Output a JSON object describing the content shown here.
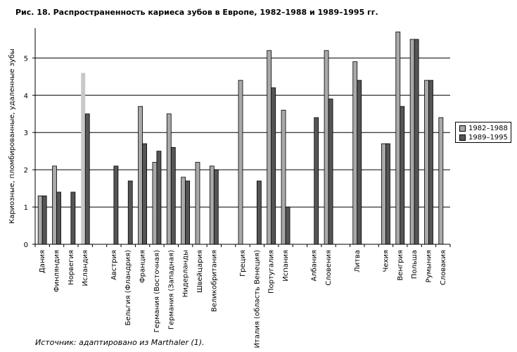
{
  "title": "Рис. 18. Распространенность кариеса зубов в Европе, 1982–1988 и 1989–1995 гг.",
  "source": "Источник: адаптировано из Marthaler (1).",
  "colors": {
    "series1": "#a9a9a9",
    "series2": "#555555",
    "highlight": "#c8c8c8",
    "grid": "#000000"
  },
  "chart_data": {
    "type": "bar",
    "ylabel": "Кариозные, пломбированные, удаленные зубы",
    "xlabel": "",
    "ylim": [
      0,
      5.8
    ],
    "yticks": [
      0,
      1,
      2,
      3,
      4,
      5
    ],
    "grid": true,
    "legend_position": "right",
    "categories": [
      "Дания",
      "Финляндия",
      "Норвегия",
      "Исландия",
      "",
      "Австрия",
      "Бельгия (Фландрия)",
      "Франция",
      "Германия (Восточная)",
      "Германия (Западная)",
      "Нидерланды",
      "Швейцария",
      "Великобритания",
      "",
      "Греция",
      "Италия (область Венеция)",
      "Португалия",
      "Испания",
      "",
      "Албания",
      "Словения",
      "",
      "Литва",
      "",
      "Чехия",
      "Венгрия",
      "Польша",
      "Румыния",
      "Словакия"
    ],
    "series": [
      {
        "name": "1982–1988",
        "values": [
          1.3,
          2.1,
          null,
          4.6,
          null,
          null,
          null,
          3.7,
          2.2,
          3.5,
          1.8,
          2.2,
          2.1,
          null,
          4.4,
          null,
          5.2,
          3.6,
          null,
          null,
          5.2,
          null,
          4.9,
          null,
          2.7,
          5.7,
          5.5,
          4.4,
          3.4
        ]
      },
      {
        "name": "1989–1995",
        "values": [
          1.3,
          1.4,
          1.4,
          3.5,
          null,
          2.1,
          1.7,
          2.7,
          2.5,
          2.6,
          1.7,
          null,
          2.0,
          null,
          null,
          1.7,
          4.2,
          1.0,
          null,
          3.4,
          3.9,
          null,
          4.4,
          null,
          2.7,
          3.7,
          5.5,
          4.4,
          null
        ]
      }
    ]
  }
}
